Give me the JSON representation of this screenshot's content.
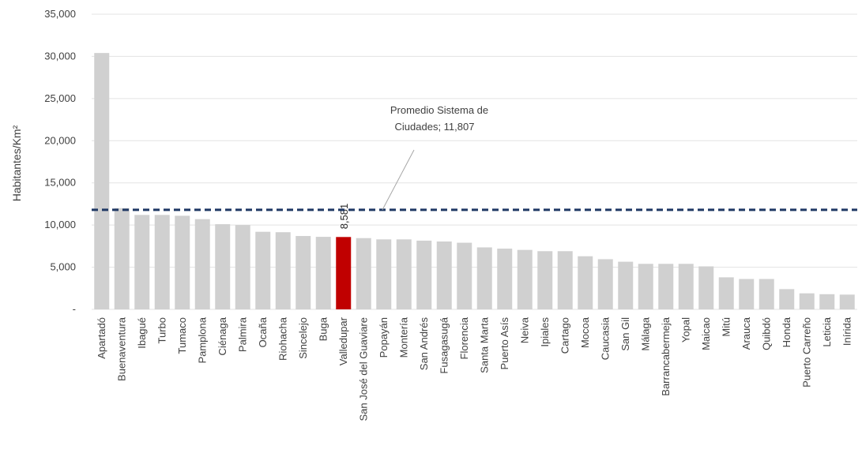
{
  "chart_data": {
    "type": "bar",
    "ylabel": "Habitantes/Km²",
    "ylim": [
      0,
      35000
    ],
    "yticks": [
      "-",
      "5,000",
      "10,000",
      "15,000",
      "20,000",
      "25,000",
      "30,000",
      "35,000"
    ],
    "grid": "horizontal",
    "categories": [
      "Apartadó",
      "Buenaventura",
      "Ibagué",
      "Turbo",
      "Tumaco",
      "Pamplona",
      "Ciénaga",
      "Palmira",
      "Ocaña",
      "Riohacha",
      "Sincelejo",
      "Buga",
      "Valledupar",
      "San José del Guaviare",
      "Popayán",
      "Montería",
      "San Andrés",
      "Fusagasugá",
      "Florencia",
      "Santa Marta",
      "Puerto Asís",
      "Neiva",
      "Ipiales",
      "Cartago",
      "Mocoa",
      "Caucasia",
      "San Gil",
      "Málaga",
      "Barrancabermeja",
      "Yopal",
      "Maicao",
      "Mitú",
      "Arauca",
      "Quibdó",
      "Honda",
      "Puerto Carreño",
      "Leticia",
      "Inírida"
    ],
    "values": [
      30400,
      12000,
      11200,
      11200,
      11100,
      10700,
      10100,
      10000,
      9200,
      9150,
      8700,
      8600,
      8581,
      8450,
      8300,
      8300,
      8150,
      8050,
      7900,
      7350,
      7200,
      7050,
      6900,
      6900,
      6300,
      5950,
      5650,
      5400,
      5400,
      5400,
      5100,
      3800,
      3600,
      3600,
      2400,
      1900,
      1800,
      1750
    ],
    "highlight": {
      "category": "Valledupar",
      "label": "8,581",
      "color": "#c00000"
    },
    "bar_color": "#d0d0d0",
    "reference_line": {
      "value": 11807,
      "color": "#1f3864",
      "style": "dashed"
    },
    "annotation": {
      "line1": "Promedio Sistema de",
      "line2": "Ciudades;  11,807"
    }
  }
}
